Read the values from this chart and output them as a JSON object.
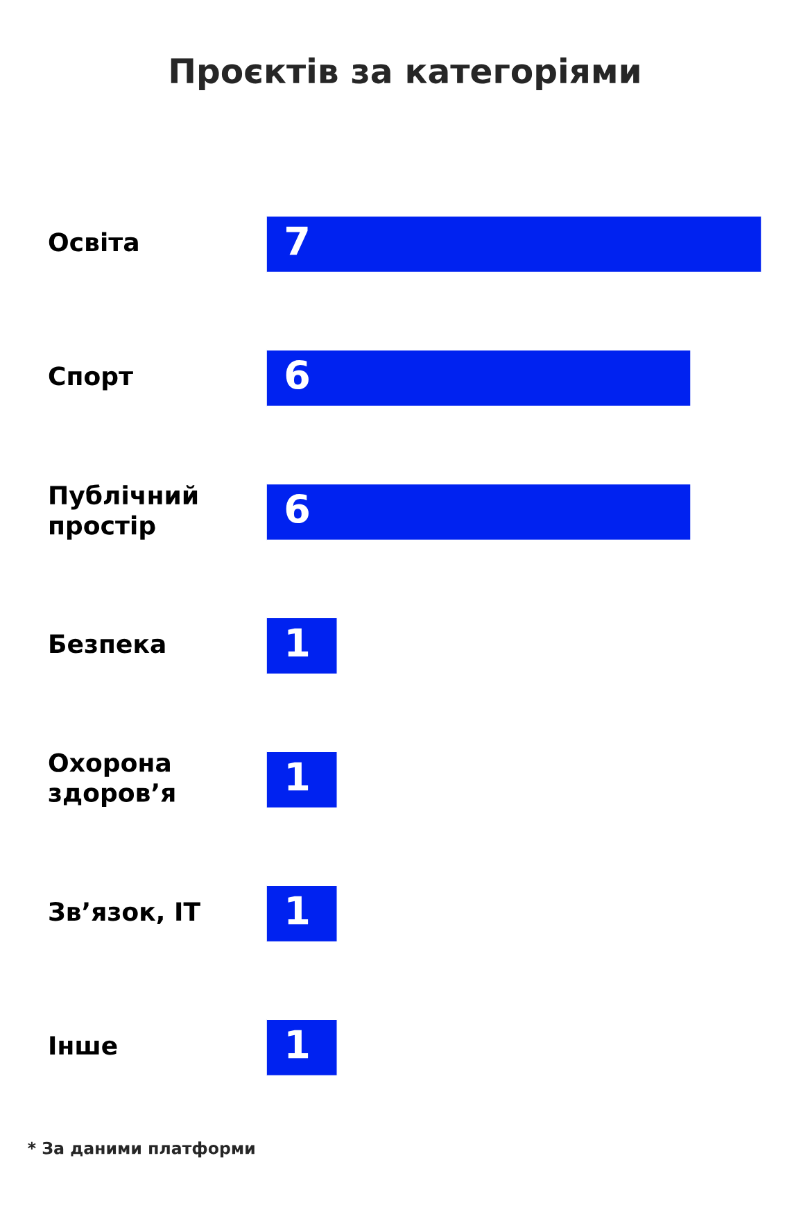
{
  "chart_data": {
    "type": "bar",
    "orientation": "horizontal",
    "title": "Проєктів за категоріями",
    "categories": [
      "Освіта",
      "Спорт",
      "Публічний\nпростір",
      "Безпека",
      "Охорона\nздоров’я",
      "Зв’язок, IT",
      "Інше"
    ],
    "values": [
      7,
      6,
      6,
      1,
      1,
      1,
      1
    ],
    "color": "#0022f0",
    "data_labels": true,
    "tick_labels": "y",
    "annotations": [
      "* За даними платформи"
    ]
  }
}
